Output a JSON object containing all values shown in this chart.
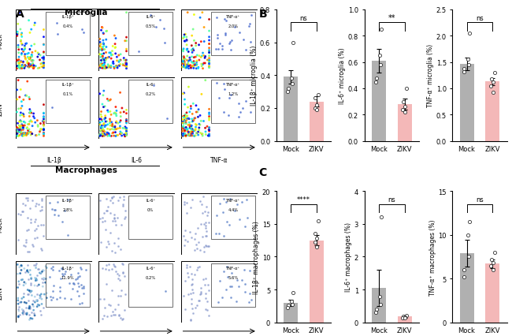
{
  "panel_A": {
    "microglia": {
      "mock": [
        {
          "label": "IL-1β⁺",
          "pct": "0.4%"
        },
        {
          "label": "IL-6⁺",
          "pct": "0.5%"
        },
        {
          "label": "TNF-α⁺",
          "pct": "2.0%"
        }
      ],
      "zikv": [
        {
          "label": "IL-1β⁺",
          "pct": "0.1%"
        },
        {
          "label": "IL-6⁺",
          "pct": "0.2%"
        },
        {
          "label": "TNF-α⁺",
          "pct": "1.2%"
        }
      ],
      "xlabels": [
        "IL-1β",
        "IL-6",
        "TNF-α"
      ],
      "title": "Microglia"
    },
    "macrophages": {
      "mock": [
        {
          "label": "IL-1β⁺",
          "pct": "2.8%"
        },
        {
          "label": "IL-6⁺",
          "pct": "0%"
        },
        {
          "label": "TNF-α⁺",
          "pct": "4.4%"
        }
      ],
      "zikv": [
        {
          "label": "IL-1β⁺",
          "pct": "11.9%"
        },
        {
          "label": "IL-6⁺",
          "pct": "0.2%"
        },
        {
          "label": "TNF-α⁺",
          "pct": "5.6%"
        }
      ],
      "xlabels": [
        "IL-1β",
        "IL-6",
        "TNF-α"
      ],
      "title": "Macrophages"
    }
  },
  "panel_B": {
    "subplots": [
      {
        "ylabel": "IL-1β⁺ microglia (%)",
        "ylim": [
          0,
          0.8
        ],
        "yticks": [
          0.0,
          0.2,
          0.4,
          0.6,
          0.8
        ],
        "mock_mean": 0.39,
        "mock_sem": 0.04,
        "zikv_mean": 0.24,
        "zikv_sem": 0.03,
        "mock_dots": [
          0.6,
          0.38,
          0.35,
          0.32,
          0.3
        ],
        "zikv_dots": [
          0.28,
          0.26,
          0.22,
          0.2,
          0.19
        ],
        "sig": "ns"
      },
      {
        "ylabel": "IL-6⁺ microglia (%)",
        "ylim": [
          0,
          1.0
        ],
        "yticks": [
          0.0,
          0.2,
          0.4,
          0.6,
          0.8,
          1.0
        ],
        "mock_mean": 0.61,
        "mock_sem": 0.09,
        "zikv_mean": 0.28,
        "zikv_sem": 0.04,
        "mock_dots": [
          0.85,
          0.65,
          0.58,
          0.48,
          0.45
        ],
        "zikv_dots": [
          0.4,
          0.3,
          0.26,
          0.24,
          0.22
        ],
        "sig": "**"
      },
      {
        "ylabel": "TNF-α⁺ microglia (%)",
        "ylim": [
          0,
          2.5
        ],
        "yticks": [
          0.0,
          0.5,
          1.0,
          1.5,
          2.0,
          2.5
        ],
        "mock_mean": 1.47,
        "mock_sem": 0.12,
        "zikv_mean": 1.13,
        "zikv_sem": 0.07,
        "mock_dots": [
          2.05,
          1.55,
          1.45,
          1.38,
          1.32
        ],
        "zikv_dots": [
          1.3,
          1.18,
          1.12,
          1.05,
          0.92
        ],
        "sig": "ns"
      }
    ]
  },
  "panel_C": {
    "subplots": [
      {
        "ylabel": "IL-1β⁺ macrophages (%)",
        "ylim": [
          0,
          20
        ],
        "yticks": [
          0,
          5,
          10,
          15,
          20
        ],
        "mock_mean": 3.0,
        "mock_sem": 0.5,
        "zikv_mean": 12.5,
        "zikv_sem": 0.8,
        "mock_dots": [
          4.5,
          3.2,
          2.8,
          2.6,
          2.3
        ],
        "zikv_dots": [
          15.5,
          13.5,
          12.8,
          12.2,
          11.5
        ],
        "sig": "****"
      },
      {
        "ylabel": "IL-6⁺ macrophages (%)",
        "ylim": [
          0,
          4
        ],
        "yticks": [
          0,
          1,
          2,
          3,
          4
        ],
        "mock_mean": 1.05,
        "mock_sem": 0.55,
        "zikv_mean": 0.18,
        "zikv_sem": 0.04,
        "mock_dots": [
          3.2,
          0.8,
          0.55,
          0.4,
          0.3
        ],
        "zikv_dots": [
          0.22,
          0.2,
          0.17,
          0.15,
          0.14
        ],
        "sig": "ns"
      },
      {
        "ylabel": "TNF-α⁺ macrophages (%)",
        "ylim": [
          0,
          15
        ],
        "yticks": [
          0,
          5,
          10,
          15
        ],
        "mock_mean": 7.9,
        "mock_sem": 1.5,
        "zikv_mean": 6.7,
        "zikv_sem": 0.5,
        "mock_dots": [
          11.5,
          10.0,
          7.5,
          6.0,
          5.2
        ],
        "zikv_dots": [
          8.0,
          7.2,
          6.8,
          6.5,
          6.0
        ],
        "sig": "ns"
      }
    ]
  },
  "colors": {
    "mock_bar": "#b0b0b0",
    "zikv_bar": "#f4b8b8"
  }
}
